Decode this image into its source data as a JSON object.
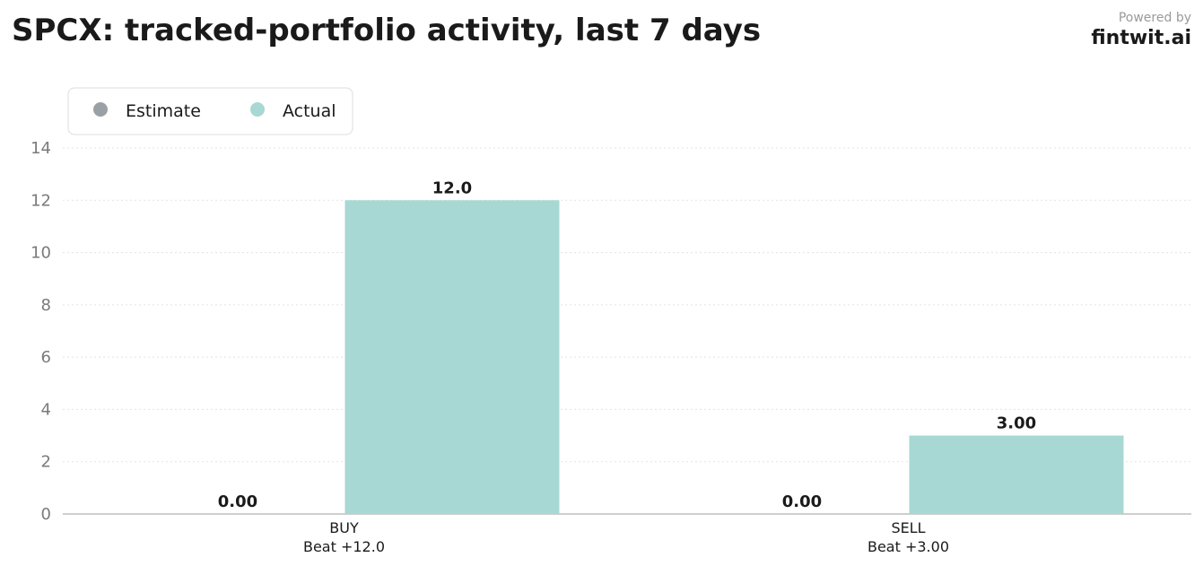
{
  "header": {
    "title": "SPCX: tracked-portfolio activity, last 7 days",
    "powered_by": "Powered by",
    "brand": "fintwit.ai"
  },
  "colors": {
    "estimate": "#9aa0a6",
    "actual": "#a8d8d4",
    "grid": "#e3e3e3",
    "axis": "#bdbdbd"
  },
  "chart_data": {
    "type": "bar",
    "title": "SPCX: tracked-portfolio activity, last 7 days",
    "categories": [
      "BUY",
      "SELL"
    ],
    "category_sublabels": [
      "Beat +12.0",
      "Beat +3.00"
    ],
    "series": [
      {
        "name": "Estimate",
        "values": [
          0,
          0
        ],
        "labels": [
          "0.00",
          "0.00"
        ]
      },
      {
        "name": "Actual",
        "values": [
          12,
          3
        ],
        "labels": [
          "12.0",
          "3.00"
        ]
      }
    ],
    "ylim": [
      0,
      14
    ],
    "yticks": [
      0,
      2,
      4,
      6,
      8,
      10,
      12,
      14
    ],
    "xlabel": "",
    "ylabel": "",
    "grid": true,
    "legend": "top-left"
  }
}
